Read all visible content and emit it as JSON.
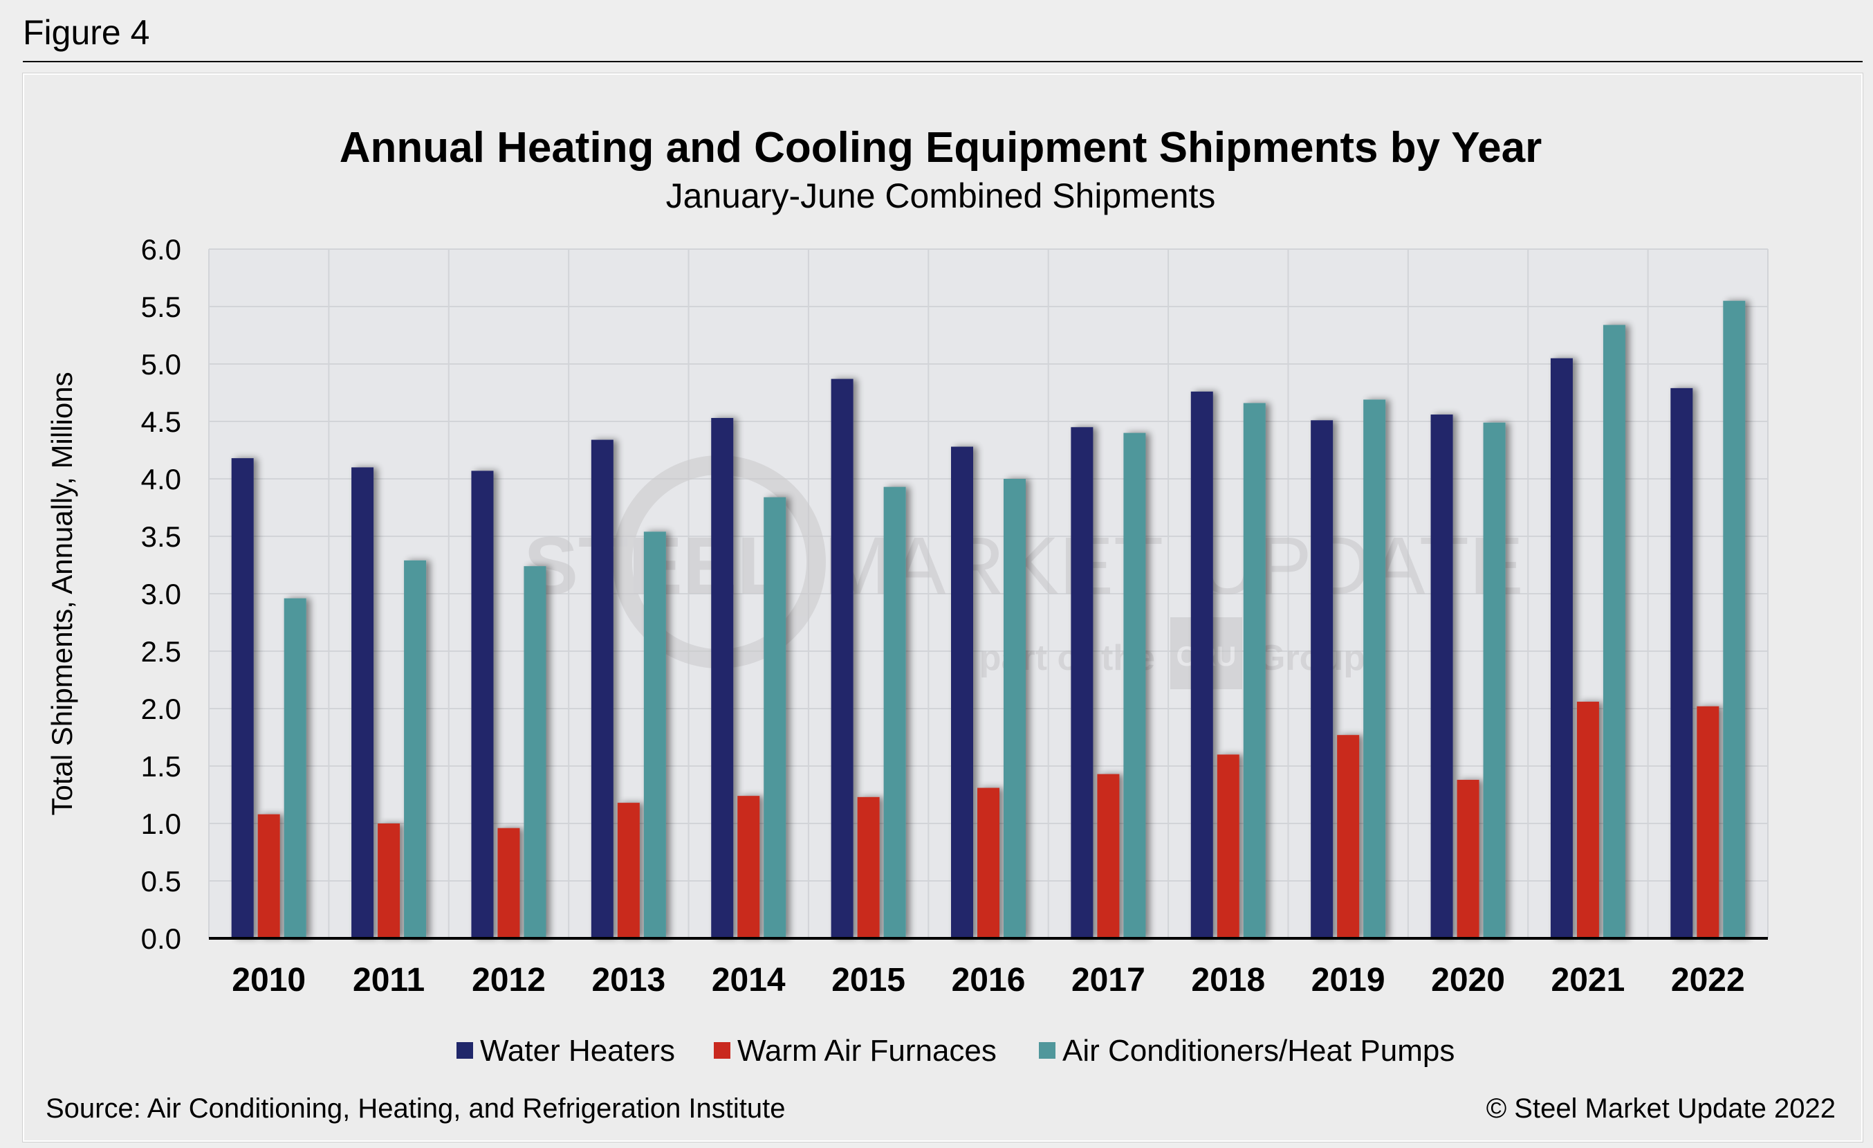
{
  "figure_label": "Figure 4",
  "watermark": {
    "brand": "STEEL MARKET UPDATE",
    "brand_parts": [
      "STEEL",
      "MARKET",
      "UPDATE"
    ],
    "tagline_prefix": "part of the",
    "tagline_logo": "CRU",
    "tagline_suffix": "Group"
  },
  "source": "Source: Air Conditioning, Heating, and Refrigeration Institute",
  "copyright": "© Steel Market Update 2022",
  "colors": {
    "water_heaters": "#20276a",
    "warm_air_furnaces": "#c9291f",
    "ac_heat_pumps": "#50979b",
    "plot_bg": "#e6e7ea",
    "grid": "#d2d4d8"
  },
  "chart_data": {
    "type": "bar",
    "title": "Annual Heating and Cooling Equipment Shipments by Year",
    "subtitle": "January-June Combined Shipments",
    "xlabel": "",
    "ylabel": "Total Shipments, Annually, Millions",
    "ylim": [
      0,
      6
    ],
    "yticks": [
      "0.0",
      "0.5",
      "1.0",
      "1.5",
      "2.0",
      "2.5",
      "3.0",
      "3.5",
      "4.0",
      "4.5",
      "5.0",
      "5.5",
      "6.0"
    ],
    "grid": true,
    "legend_position": "bottom",
    "categories": [
      "2010",
      "2011",
      "2012",
      "2013",
      "2014",
      "2015",
      "2016",
      "2017",
      "2018",
      "2019",
      "2020",
      "2021",
      "2022"
    ],
    "series": [
      {
        "name": "Water Heaters",
        "color_key": "water_heaters",
        "values": [
          4.18,
          4.1,
          4.07,
          4.34,
          4.53,
          4.87,
          4.28,
          4.45,
          4.76,
          4.51,
          4.56,
          5.05,
          4.79
        ]
      },
      {
        "name": "Warm Air Furnaces",
        "color_key": "warm_air_furnaces",
        "values": [
          1.08,
          1.0,
          0.96,
          1.18,
          1.24,
          1.23,
          1.31,
          1.43,
          1.6,
          1.77,
          1.38,
          2.06,
          2.02
        ]
      },
      {
        "name": "Air Conditioners/Heat Pumps",
        "color_key": "ac_heat_pumps",
        "values": [
          2.96,
          3.29,
          3.24,
          3.54,
          3.84,
          3.93,
          4.0,
          4.4,
          4.66,
          4.69,
          4.49,
          5.34,
          5.55
        ]
      }
    ]
  }
}
